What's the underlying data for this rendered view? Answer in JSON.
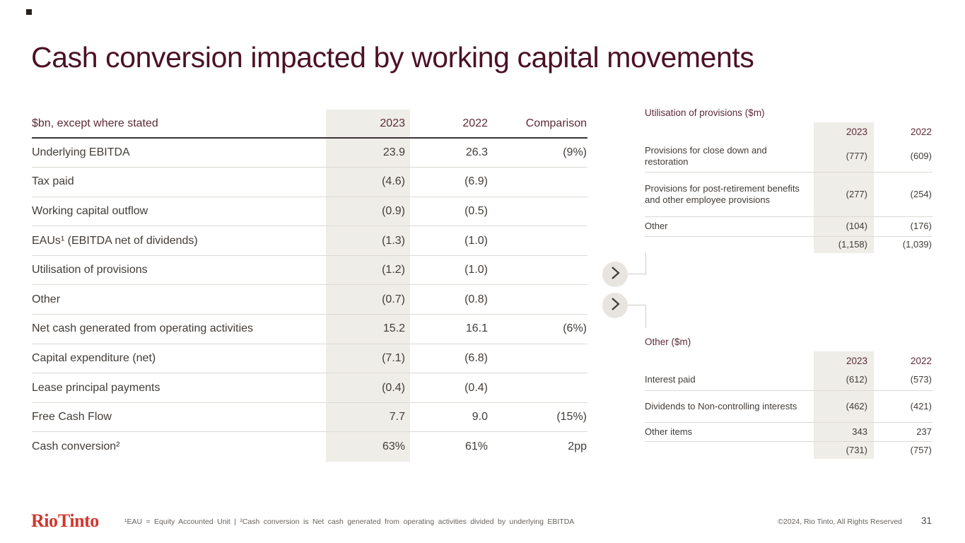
{
  "slide": {
    "title": "Cash conversion impacted by working capital movements",
    "logo_text": "Rio Tinto",
    "footnote": "¹EAU = Equity Accounted Unit | ²Cash conversion is Net cash generated from operating activities divided by underlying EBITDA",
    "copyright": "©2024, Rio Tinto, All Rights Reserved",
    "page_number": "31"
  },
  "colors": {
    "title_maroon": "#4c1127",
    "header_maroon": "#5d2a38",
    "brand_red": "#d2362e",
    "text_dark": "#413c38",
    "shaded_column": "#efede8",
    "divider_light": "#dcd9d4",
    "header_rule_dark": "#3a3336"
  },
  "icons": {
    "connector_button": "chevron-right-icon"
  },
  "main_table": {
    "header": [
      "$bn, except where stated",
      "2023",
      "2022",
      "Comparison"
    ],
    "rows": [
      {
        "label": "Underlying EBITDA",
        "y2023": "23.9",
        "y2022": "26.3",
        "comparison": "(9%)"
      },
      {
        "label": "Tax paid",
        "y2023": "(4.6)",
        "y2022": "(6.9)",
        "comparison": ""
      },
      {
        "label": "Working capital outflow",
        "y2023": "(0.9)",
        "y2022": "(0.5)",
        "comparison": ""
      },
      {
        "label": "EAUs¹ (EBITDA net of dividends)",
        "y2023": "(1.3)",
        "y2022": "(1.0)",
        "comparison": ""
      },
      {
        "label": "Utilisation of provisions",
        "y2023": "(1.2)",
        "y2022": "(1.0)",
        "comparison": ""
      },
      {
        "label": "Other",
        "y2023": "(0.7)",
        "y2022": "(0.8)",
        "comparison": ""
      },
      {
        "label": "Net cash generated from operating activities",
        "y2023": "15.2",
        "y2022": "16.1",
        "comparison": "(6%)"
      },
      {
        "label": "Capital expenditure (net)",
        "y2023": "(7.1)",
        "y2022": "(6.8)",
        "comparison": ""
      },
      {
        "label": "Lease principal payments",
        "y2023": "(0.4)",
        "y2022": "(0.4)",
        "comparison": ""
      },
      {
        "label": "Free Cash Flow",
        "y2023": "7.7",
        "y2022": "9.0",
        "comparison": "(15%)"
      },
      {
        "label": "Cash conversion²",
        "y2023": "63%",
        "y2022": "61%",
        "comparison": "2pp"
      }
    ]
  },
  "right_tables": [
    {
      "title": "Utilisation of provisions ($m)",
      "header": [
        "2023",
        "2022"
      ],
      "rows": [
        {
          "label": "Provisions for close down and restoration",
          "y2023": "(777)",
          "y2022": "(609)"
        },
        {
          "label": "Provisions for post-retirement benefits and other employee provisions",
          "y2023": "(277)",
          "y2022": "(254)"
        },
        {
          "label": "Other",
          "y2023": "(104)",
          "y2022": "(176)"
        }
      ],
      "total": {
        "y2023": "(1,158)",
        "y2022": "(1,039)"
      }
    },
    {
      "title": "Other ($m)",
      "header": [
        "2023",
        "2022"
      ],
      "rows": [
        {
          "label": "Interest paid",
          "y2023": "(612)",
          "y2022": "(573)"
        },
        {
          "label": "Dividends to Non-controlling interests",
          "y2023": "(462)",
          "y2022": "(421)"
        },
        {
          "label": "Other items",
          "y2023": "343",
          "y2022": "237"
        }
      ],
      "total": {
        "y2023": "(731)",
        "y2022": "(757)"
      }
    }
  ]
}
